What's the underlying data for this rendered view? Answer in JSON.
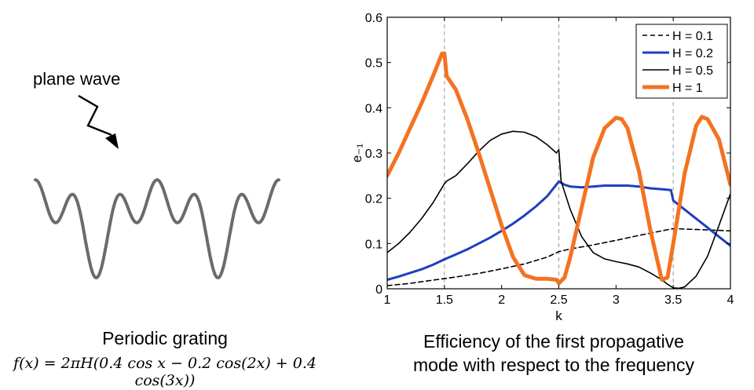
{
  "left_panel": {
    "arrow_label": "plane wave",
    "title": "Periodic grating",
    "formula": "f(x) = 2πH(0.4 cos x − 0.2 cos(2x) + 0.4 cos(3x))"
  },
  "right_caption": {
    "line1": "Efficiency of the first propagative",
    "line2": "mode with respect to the frequency"
  },
  "colors": {
    "grating": "#6b6b6b",
    "blue": "#1f3fbf",
    "orange": "#f37321",
    "black": "#000000",
    "guide": "#999999"
  },
  "chart_data": {
    "type": "line",
    "xlabel": "k",
    "ylabel": "e₋₁",
    "xlim": [
      1,
      4
    ],
    "ylim": [
      0,
      0.6
    ],
    "xticks": [
      1,
      1.5,
      2,
      2.5,
      3,
      3.5,
      4
    ],
    "xtick_labels": [
      "1",
      "1.5",
      "2",
      "2.5",
      "3",
      "3.5",
      "4"
    ],
    "yticks": [
      0,
      0.1,
      0.2,
      0.3,
      0.4,
      0.5,
      0.6
    ],
    "ytick_labels": [
      "0",
      "0.1",
      "0.2",
      "0.3",
      "0.4",
      "0.5",
      "0.6"
    ],
    "vertical_guides": [
      1.5,
      2.5,
      3.5
    ],
    "legend_position": "top-right",
    "series": [
      {
        "name": "H = 0.1",
        "style": "dashed",
        "color": "#000000",
        "width": 1.6,
        "x": [
          1.0,
          1.2,
          1.4,
          1.6,
          1.8,
          2.0,
          2.2,
          2.4,
          2.5,
          2.6,
          2.8,
          3.0,
          3.2,
          3.4,
          3.5,
          3.6,
          3.8,
          4.0
        ],
        "y": [
          0.007,
          0.012,
          0.019,
          0.026,
          0.034,
          0.044,
          0.055,
          0.07,
          0.082,
          0.088,
          0.097,
          0.107,
          0.118,
          0.128,
          0.133,
          0.132,
          0.13,
          0.128
        ]
      },
      {
        "name": "H = 0.2",
        "style": "solid",
        "color": "#1f3fbf",
        "width": 3,
        "x": [
          1.0,
          1.1,
          1.2,
          1.3,
          1.4,
          1.5,
          1.6,
          1.7,
          1.8,
          1.9,
          2.0,
          2.1,
          2.2,
          2.3,
          2.4,
          2.5,
          2.55,
          2.6,
          2.7,
          2.8,
          2.9,
          3.0,
          3.1,
          3.2,
          3.3,
          3.4,
          3.48,
          3.5,
          3.6,
          3.7,
          3.8,
          3.9,
          4.0
        ],
        "y": [
          0.02,
          0.027,
          0.035,
          0.043,
          0.053,
          0.065,
          0.076,
          0.087,
          0.1,
          0.113,
          0.128,
          0.144,
          0.162,
          0.182,
          0.205,
          0.237,
          0.23,
          0.226,
          0.224,
          0.226,
          0.228,
          0.228,
          0.228,
          0.226,
          0.222,
          0.22,
          0.218,
          0.195,
          0.175,
          0.155,
          0.135,
          0.115,
          0.095
        ]
      },
      {
        "name": "H = 0.5",
        "style": "solid",
        "color": "#000000",
        "width": 1.6,
        "x": [
          1.0,
          1.1,
          1.2,
          1.3,
          1.4,
          1.5,
          1.52,
          1.6,
          1.7,
          1.8,
          1.9,
          2.0,
          2.1,
          2.2,
          2.3,
          2.4,
          2.48,
          2.5,
          2.52,
          2.6,
          2.7,
          2.8,
          2.9,
          3.0,
          3.1,
          3.2,
          3.3,
          3.4,
          3.45,
          3.5,
          3.55,
          3.6,
          3.7,
          3.8,
          3.9,
          4.0
        ],
        "y": [
          0.08,
          0.1,
          0.125,
          0.155,
          0.19,
          0.232,
          0.238,
          0.25,
          0.276,
          0.304,
          0.328,
          0.342,
          0.348,
          0.346,
          0.336,
          0.318,
          0.3,
          0.308,
          0.238,
          0.175,
          0.115,
          0.08,
          0.066,
          0.06,
          0.055,
          0.048,
          0.035,
          0.02,
          0.01,
          0.002,
          0.001,
          0.004,
          0.028,
          0.072,
          0.14,
          0.21
        ]
      },
      {
        "name": "H = 1",
        "style": "solid",
        "color": "#f37321",
        "width": 5,
        "x": [
          1.0,
          1.1,
          1.2,
          1.3,
          1.4,
          1.48,
          1.5,
          1.52,
          1.6,
          1.7,
          1.8,
          1.9,
          2.0,
          2.1,
          2.2,
          2.3,
          2.4,
          2.48,
          2.5,
          2.55,
          2.6,
          2.7,
          2.8,
          2.9,
          3.0,
          3.05,
          3.1,
          3.2,
          3.3,
          3.4,
          3.45,
          3.5,
          3.6,
          3.7,
          3.75,
          3.8,
          3.9,
          4.0
        ],
        "y": [
          0.25,
          0.3,
          0.355,
          0.41,
          0.47,
          0.52,
          0.52,
          0.47,
          0.44,
          0.375,
          0.3,
          0.22,
          0.14,
          0.07,
          0.03,
          0.022,
          0.022,
          0.02,
          0.012,
          0.025,
          0.07,
          0.18,
          0.29,
          0.355,
          0.378,
          0.375,
          0.355,
          0.26,
          0.13,
          0.02,
          0.025,
          0.1,
          0.255,
          0.36,
          0.38,
          0.375,
          0.33,
          0.23
        ]
      }
    ]
  }
}
